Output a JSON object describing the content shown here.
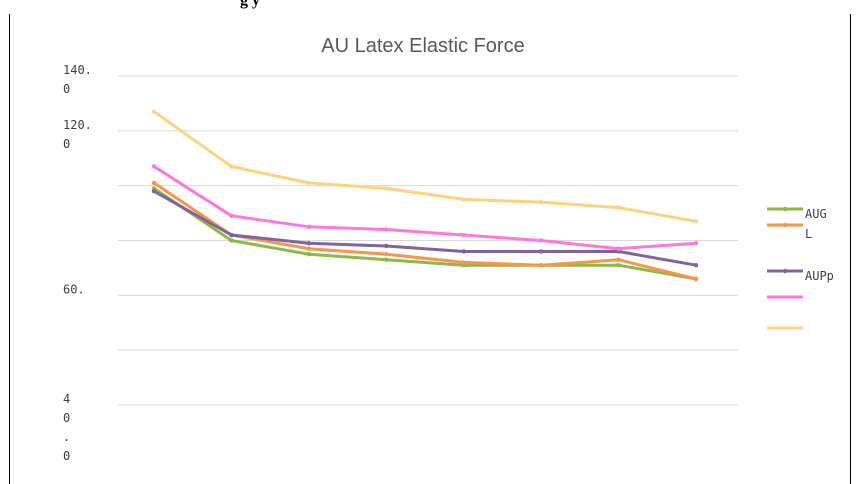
{
  "caption": {
    "text": "g                                                                                                   y"
  },
  "chart_data": {
    "type": "line",
    "title": "AU Latex Elastic Force",
    "xlabel": "",
    "ylabel": "",
    "ylim": [
      20,
      140
    ],
    "y_tick_values": [
      140,
      120,
      100,
      80,
      60,
      40,
      20
    ],
    "y_tick_labels": [
      [
        "140.",
        "0"
      ],
      [
        "120.",
        "0"
      ],
      [],
      [],
      [
        "60."
      ],
      [],
      [
        "4",
        "0",
        ".",
        "0"
      ]
    ],
    "x": [
      1,
      2,
      3,
      4,
      5,
      6,
      7,
      8
    ],
    "grid": true,
    "legend_position": "right",
    "series": [
      {
        "name": "AUG",
        "color": "#8fb84a",
        "values": [
          99,
          80,
          75,
          73,
          71,
          71,
          71,
          66
        ]
      },
      {
        "name": "L",
        "color": "#f79646",
        "values": [
          101,
          82,
          77,
          75,
          72,
          71,
          73,
          66
        ]
      },
      {
        "name": "AUPp",
        "color": "#8064a2",
        "values": [
          98,
          82,
          79,
          78,
          76,
          76,
          76,
          71
        ]
      },
      {
        "name": "",
        "color": "#ff77dd",
        "values": [
          107,
          89,
          85,
          84,
          82,
          80,
          77,
          79
        ]
      },
      {
        "name": "",
        "color": "#ffd27f",
        "values": [
          127,
          107,
          101,
          99,
          95,
          94,
          92,
          87
        ]
      }
    ]
  }
}
